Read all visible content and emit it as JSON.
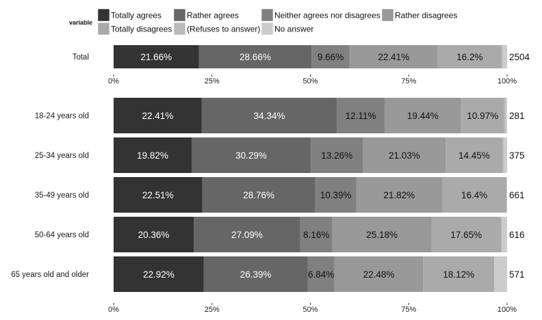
{
  "chart_data": {
    "type": "bar",
    "orientation": "horizontal",
    "stacked": true,
    "percent": true,
    "legend": {
      "title": "variable",
      "placement": "top",
      "entries": [
        {
          "name": "Totally agrees",
          "color": "#333333"
        },
        {
          "name": "Rather agrees",
          "color": "#666666"
        },
        {
          "name": "Neither agrees nor disagrees",
          "color": "#808080"
        },
        {
          "name": "Rather disagrees",
          "color": "#999999"
        },
        {
          "name": "Totally disagrees",
          "color": "#aaaaaa"
        },
        {
          "name": "(Refuses to answer)",
          "color": "#bbbbbb"
        },
        {
          "name": "No answer",
          "color": "#cccccc"
        }
      ]
    },
    "xlim": [
      0,
      100
    ],
    "xticks": [
      "0%",
      "25%",
      "50%",
      "75%",
      "100%"
    ],
    "grid": false,
    "panels": [
      {
        "rows": [
          {
            "category": "Total",
            "n": "2504",
            "values": [
              21.66,
              28.66,
              9.66,
              22.41,
              16.2,
              0.3,
              1.11
            ],
            "labels": [
              "21.66%",
              "28.66%",
              "9.66%",
              "22.41%",
              "16.2%",
              "",
              ""
            ]
          }
        ]
      },
      {
        "rows": [
          {
            "category": "18-24 years old",
            "n": "281",
            "values": [
              22.41,
              34.34,
              12.11,
              19.44,
              10.97,
              0.4,
              0.33
            ],
            "labels": [
              "22.41%",
              "34.34%",
              "12.11%",
              "19.44%",
              "10.97%",
              "",
              ""
            ]
          },
          {
            "category": "25-34 years old",
            "n": "375",
            "values": [
              19.82,
              30.29,
              13.26,
              21.03,
              14.45,
              0.3,
              0.85
            ],
            "labels": [
              "19.82%",
              "30.29%",
              "13.26%",
              "21.03%",
              "14.45%",
              "",
              ""
            ]
          },
          {
            "category": "35-49 years old",
            "n": "661",
            "values": [
              22.51,
              28.76,
              10.39,
              21.82,
              16.4,
              0,
              0.12
            ],
            "labels": [
              "22.51%",
              "28.76%",
              "10.39%",
              "21.82%",
              "16.4%",
              "",
              ""
            ]
          },
          {
            "category": "50-64 years old",
            "n": "616",
            "values": [
              20.36,
              27.09,
              8.16,
              25.18,
              17.65,
              0.3,
              1.26
            ],
            "labels": [
              "20.36%",
              "27.09%",
              "8.16%",
              "25.18%",
              "17.65%",
              "",
              ""
            ]
          },
          {
            "category": "65 years old and older",
            "n": "571",
            "values": [
              22.92,
              26.39,
              6.84,
              22.48,
              18.12,
              0,
              3.25
            ],
            "labels": [
              "22.92%",
              "26.39%",
              "6.84%",
              "22.48%",
              "18.12%",
              "",
              ""
            ]
          }
        ]
      }
    ]
  }
}
